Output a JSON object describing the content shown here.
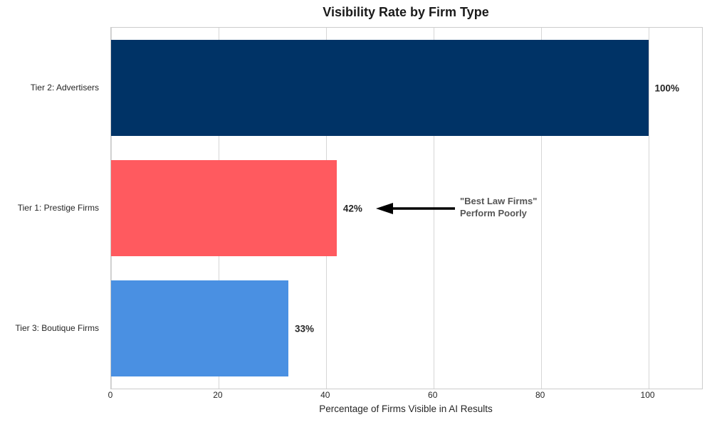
{
  "chart_data": {
    "type": "bar",
    "orientation": "horizontal",
    "title": "Visibility Rate by Firm Type",
    "xlabel": "Percentage of Firms Visible in AI Results",
    "ylabel": "",
    "categories": [
      "Tier 2: Advertisers",
      "Tier 1: Prestige Firms",
      "Tier 3: Boutique Firms"
    ],
    "values": [
      100,
      42,
      33
    ],
    "value_labels": [
      "100%",
      "42%",
      "33%"
    ],
    "bar_colors": [
      "#003366",
      "#FF5A5F",
      "#4A90E2"
    ],
    "xlim": [
      0,
      110
    ],
    "xticks": [
      0,
      20,
      40,
      60,
      80,
      100
    ],
    "grid": "vertical-gridlines-on",
    "legend": "none",
    "annotation": {
      "line1": "\"Best Law Firms\"",
      "line2": "Perform Poorly",
      "points_to_value": 42,
      "points_to_category": "Tier 1: Prestige Firms",
      "arrow_color": "#000000",
      "text_color": "#555555"
    }
  }
}
